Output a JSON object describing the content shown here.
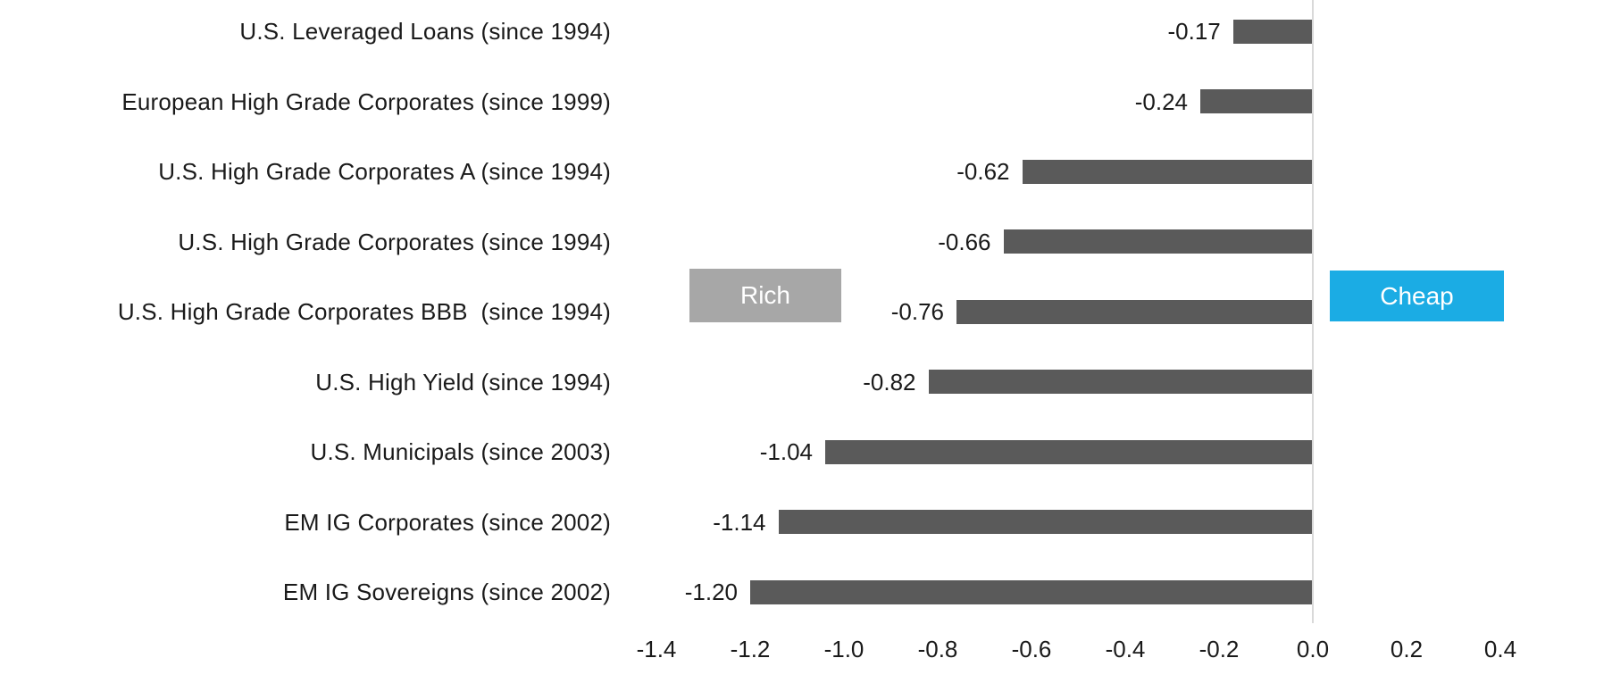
{
  "chart_data": {
    "type": "bar",
    "orientation": "horizontal",
    "title": "",
    "xlabel": "",
    "ylabel": "",
    "categories": [
      "U.S. Leveraged Loans (since 1994)",
      "European High Grade Corporates (since 1999)",
      "U.S. High Grade Corporates A (since 1994)",
      "U.S. High Grade Corporates (since 1994)",
      "U.S. High Grade Corporates BBB  (since 1994)",
      "U.S. High Yield (since 1994)",
      "U.S. Municipals (since 2003)",
      "EM IG Corporates (since 2002)",
      "EM IG Sovereigns (since 2002)"
    ],
    "values": [
      -0.17,
      -0.24,
      -0.62,
      -0.66,
      -0.76,
      -0.82,
      -1.04,
      -1.14,
      -1.2
    ],
    "value_labels": [
      "-0.17",
      "-0.24",
      "-0.62",
      "-0.66",
      "-0.76",
      "-0.82",
      "-1.04",
      "-1.14",
      "-1.20"
    ],
    "x_ticks": [
      "-1.4",
      "-1.2",
      "-1.0",
      "-0.8",
      "-0.6",
      "-0.4",
      "-0.2",
      "0.0",
      "0.2",
      "0.4"
    ],
    "x_tick_values": [
      -1.4,
      -1.2,
      -1.0,
      -0.8,
      -0.6,
      -0.4,
      -0.2,
      0.0,
      0.2,
      0.4
    ],
    "xlim": [
      -1.5,
      0.45
    ],
    "grid": false,
    "legend_position": "none",
    "bar_color": "#5a5a5a",
    "axis_line_color": "#d9d9d9",
    "text_color": "#1a1a1a",
    "annotations": [
      {
        "label": "Rich",
        "color": "#a7a7a7",
        "text_color": "#ffffff",
        "side": "left"
      },
      {
        "label": "Cheap",
        "color": "#1bace4",
        "text_color": "#ffffff",
        "side": "right"
      }
    ]
  }
}
